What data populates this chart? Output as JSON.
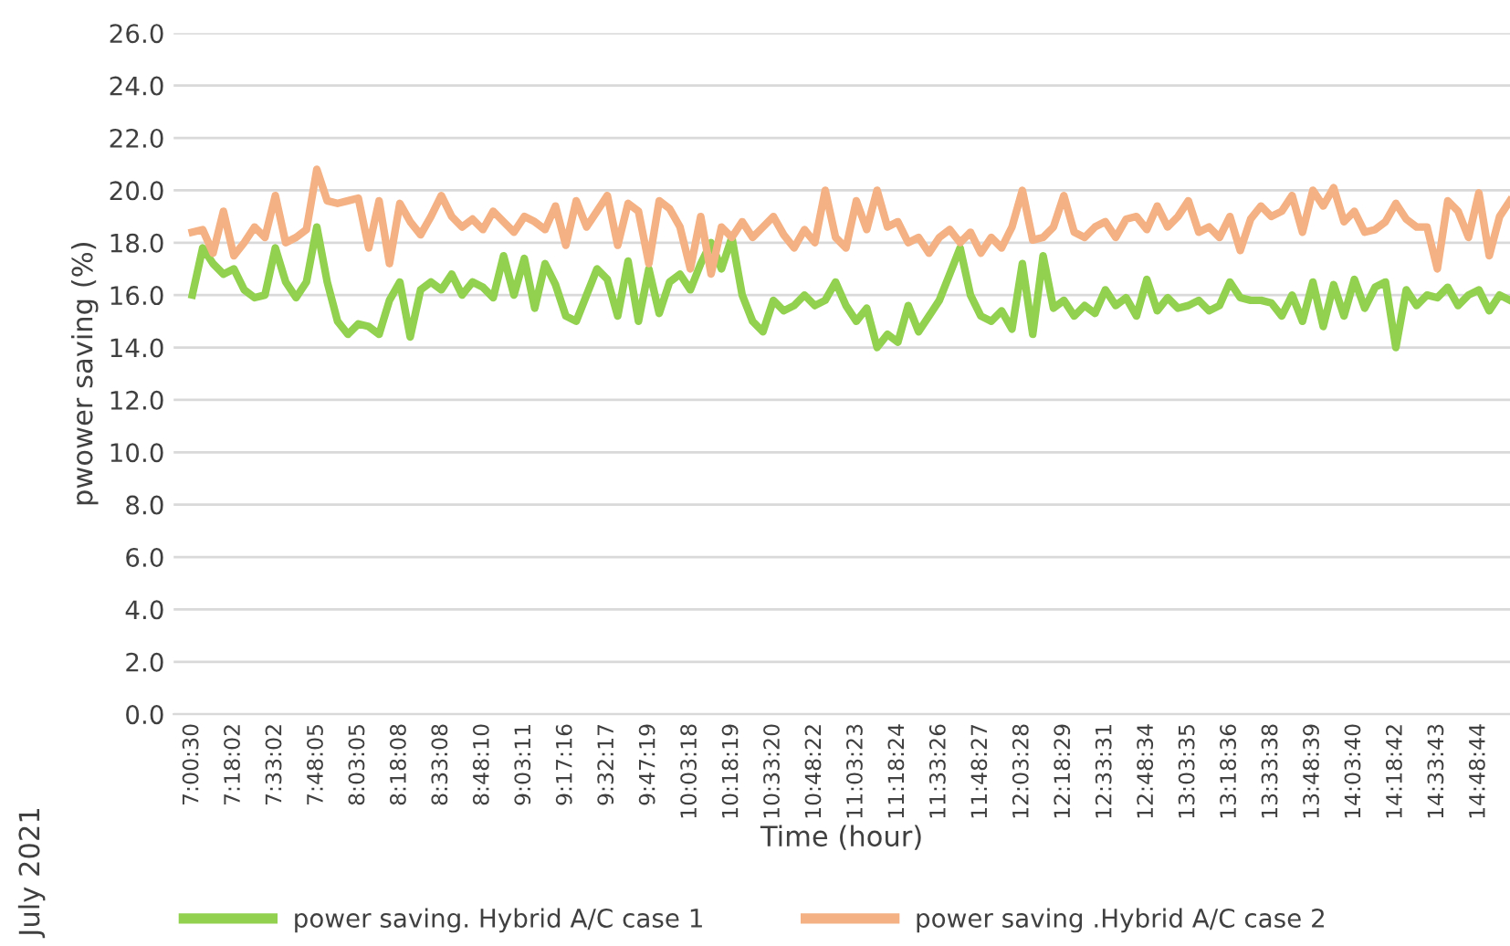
{
  "chart_data": {
    "type": "line",
    "xlabel": "Time (hour)",
    "ylabel": "pwower saving (%)",
    "categories": [
      "7:00:30",
      null,
      null,
      null,
      "7:18:02",
      null,
      null,
      null,
      "7:33:02",
      null,
      null,
      null,
      "7:48:05",
      null,
      null,
      null,
      "8:03:05",
      null,
      null,
      null,
      "8:18:08",
      null,
      null,
      null,
      "8:33:08",
      null,
      null,
      null,
      "8:48:10",
      null,
      null,
      null,
      "9:03:11",
      null,
      null,
      null,
      "9:17:16",
      null,
      null,
      null,
      "9:32:17",
      null,
      null,
      null,
      "9:47:19",
      null,
      null,
      null,
      "10:03:18",
      null,
      null,
      null,
      "10:18:19",
      null,
      null,
      null,
      "10:33:20",
      null,
      null,
      null,
      "10:48:22",
      null,
      null,
      null,
      "11:03:23",
      null,
      null,
      null,
      "11:18:24",
      null,
      null,
      null,
      "11:33:26",
      null,
      null,
      null,
      "11:48:27",
      null,
      null,
      null,
      "12:03:28",
      null,
      null,
      null,
      "12:18:29",
      null,
      null,
      null,
      "12:33:31",
      null,
      null,
      null,
      "12:48:34",
      null,
      null,
      null,
      "13:03:35",
      null,
      null,
      null,
      "13:18:36",
      null,
      null,
      null,
      "13:33:38",
      null,
      null,
      null,
      "13:48:39",
      null,
      null,
      null,
      "14:03:40",
      null,
      null,
      null,
      "14:18:42",
      null,
      null,
      null,
      "14:33:43",
      null,
      null,
      null,
      "14:48:44",
      null,
      null,
      null
    ],
    "series": [
      {
        "name": "power saving. Hybrid A/C case 1",
        "color": "#92d050",
        "values": [
          16.0,
          17.8,
          17.2,
          16.8,
          17.0,
          16.2,
          15.9,
          16.0,
          17.8,
          16.5,
          15.9,
          16.5,
          18.6,
          16.5,
          15.0,
          14.5,
          14.9,
          14.8,
          14.5,
          15.8,
          16.5,
          14.4,
          16.2,
          16.5,
          16.2,
          16.8,
          16.0,
          16.5,
          16.3,
          15.9,
          17.5,
          16.0,
          17.4,
          15.5,
          17.2,
          16.4,
          15.2,
          15.0,
          16.0,
          17.0,
          16.6,
          15.2,
          17.3,
          15.0,
          17.0,
          15.3,
          16.5,
          16.8,
          16.2,
          17.2,
          18.0,
          17.0,
          18.2,
          16.0,
          15.0,
          14.6,
          15.8,
          15.4,
          15.6,
          16.0,
          15.6,
          15.8,
          16.5,
          15.6,
          15.0,
          15.5,
          14.0,
          14.5,
          14.2,
          15.6,
          14.6,
          15.2,
          15.8,
          16.8,
          17.8,
          16.0,
          15.2,
          15.0,
          15.4,
          14.7,
          17.2,
          14.5,
          17.5,
          15.5,
          15.8,
          15.2,
          15.6,
          15.3,
          16.2,
          15.6,
          15.9,
          15.2,
          16.6,
          15.4,
          15.9,
          15.5,
          15.6,
          15.8,
          15.4,
          15.6,
          16.5,
          15.9,
          15.8,
          15.8,
          15.7,
          15.2,
          16.0,
          15.0,
          16.5,
          14.8,
          16.4,
          15.2,
          16.6,
          15.5,
          16.3,
          16.5,
          14.0,
          16.2,
          15.6,
          16.0,
          15.9,
          16.3,
          15.6,
          16.0,
          16.2,
          15.4,
          16.0,
          15.8
        ]
      },
      {
        "name": "power saving .Hybrid A/C case 2",
        "color": "#f4b183",
        "values": [
          18.4,
          18.5,
          17.6,
          19.2,
          17.5,
          18.0,
          18.6,
          18.2,
          19.8,
          18.0,
          18.2,
          18.5,
          20.8,
          19.6,
          19.5,
          19.6,
          19.7,
          17.8,
          19.6,
          17.2,
          19.5,
          18.8,
          18.3,
          19.0,
          19.8,
          19.0,
          18.6,
          18.9,
          18.5,
          19.2,
          18.8,
          18.4,
          19.0,
          18.8,
          18.5,
          19.4,
          17.9,
          19.6,
          18.6,
          19.2,
          19.8,
          17.9,
          19.5,
          19.2,
          17.2,
          19.6,
          19.3,
          18.6,
          17.0,
          19.0,
          16.8,
          18.6,
          18.2,
          18.8,
          18.2,
          18.6,
          19.0,
          18.3,
          17.8,
          18.5,
          18.0,
          20.0,
          18.2,
          17.8,
          19.6,
          18.5,
          20.0,
          18.6,
          18.8,
          18.0,
          18.2,
          17.6,
          18.2,
          18.5,
          18.0,
          18.4,
          17.6,
          18.2,
          17.8,
          18.6,
          20.0,
          18.1,
          18.2,
          18.6,
          19.8,
          18.4,
          18.2,
          18.6,
          18.8,
          18.2,
          18.9,
          19.0,
          18.5,
          19.4,
          18.6,
          19.0,
          19.6,
          18.4,
          18.6,
          18.2,
          19.0,
          17.7,
          18.9,
          19.4,
          19.0,
          19.2,
          19.8,
          18.4,
          20.0,
          19.4,
          20.1,
          18.8,
          19.2,
          18.4,
          18.5,
          18.8,
          19.5,
          18.9,
          18.6,
          18.6,
          17.0,
          19.6,
          19.2,
          18.2,
          19.9,
          17.5,
          19.0,
          19.6
        ]
      }
    ],
    "ylim": [
      0,
      26
    ],
    "yticks": [
      {
        "value": 0,
        "label": "0.0"
      },
      {
        "value": 2,
        "label": "2.0"
      },
      {
        "value": 4,
        "label": "4.0"
      },
      {
        "value": 6,
        "label": "6.0"
      },
      {
        "value": 8,
        "label": "8.0"
      },
      {
        "value": 10,
        "label": "10.0"
      },
      {
        "value": 12,
        "label": "12.0"
      },
      {
        "value": 14,
        "label": "14.0"
      },
      {
        "value": 16,
        "label": "16.0"
      },
      {
        "value": 18,
        "label": "18.0"
      },
      {
        "value": 20,
        "label": "20.0"
      },
      {
        "value": 22,
        "label": "22.0"
      },
      {
        "value": 24,
        "label": "24.0"
      },
      {
        "value": 26,
        "label": "26.0"
      }
    ],
    "grid": "y",
    "legend": "bottom",
    "marker": "none",
    "line_style": "solid",
    "annotations": [
      "July 2021"
    ]
  }
}
